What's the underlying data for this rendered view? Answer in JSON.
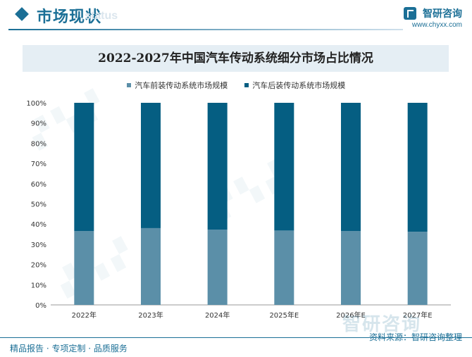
{
  "header": {
    "section_title": "市场现状",
    "section_subtitle": "status",
    "brand_name": "智研咨询",
    "brand_url": "www.chyxx.com"
  },
  "chart_data": {
    "type": "bar",
    "stacked": true,
    "title": "2022-2027年中国汽车传动系统细分市场占比情况",
    "categories": [
      "2022年",
      "2023年",
      "2024年",
      "2025年E",
      "2026年E",
      "2027年E"
    ],
    "series": [
      {
        "name": "汽车前装传动系统市场规模",
        "color": "#5b8fa8",
        "values": [
          36.5,
          38.0,
          37.2,
          36.8,
          36.5,
          36.2
        ]
      },
      {
        "name": "汽车后装传动系统市场规模",
        "color": "#055e82",
        "values": [
          63.5,
          62.0,
          62.8,
          63.2,
          63.5,
          63.8
        ]
      }
    ],
    "ylim": [
      0,
      100
    ],
    "yticks": [
      "0%",
      "10%",
      "20%",
      "30%",
      "40%",
      "50%",
      "60%",
      "70%",
      "80%",
      "90%",
      "100%"
    ],
    "legend_position": "top",
    "grid": false
  },
  "footer": {
    "left_text": "精品报告 · 专项定制 · 品质服务",
    "right_text": "资料来源：智研咨询整理",
    "watermark": "智研咨询"
  }
}
